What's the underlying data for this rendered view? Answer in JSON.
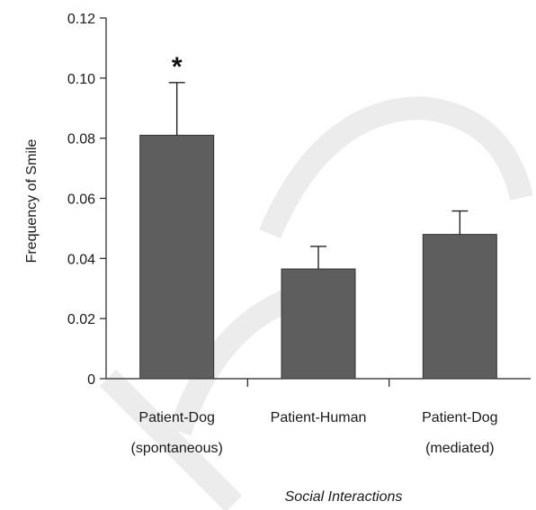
{
  "chart_data": {
    "type": "bar",
    "categories": [
      [
        "Patient-Dog",
        "(spontaneous)"
      ],
      [
        "Patient-Human"
      ],
      [
        "Patient-Dog",
        "(mediated)"
      ]
    ],
    "values": [
      0.081,
      0.0365,
      0.048
    ],
    "errors": [
      0.0175,
      0.0075,
      0.0078
    ],
    "significance": [
      "*",
      "",
      ""
    ],
    "ylabel": "Frequency of Smile",
    "xlabel": "Social Interactions",
    "ylim": [
      0,
      0.12
    ],
    "yticks": [
      "0",
      "0.02",
      "0.04",
      "0.06",
      "0.08",
      "0.10",
      "0.12"
    ],
    "grid": false,
    "bar_color": "#5e5e5e"
  }
}
